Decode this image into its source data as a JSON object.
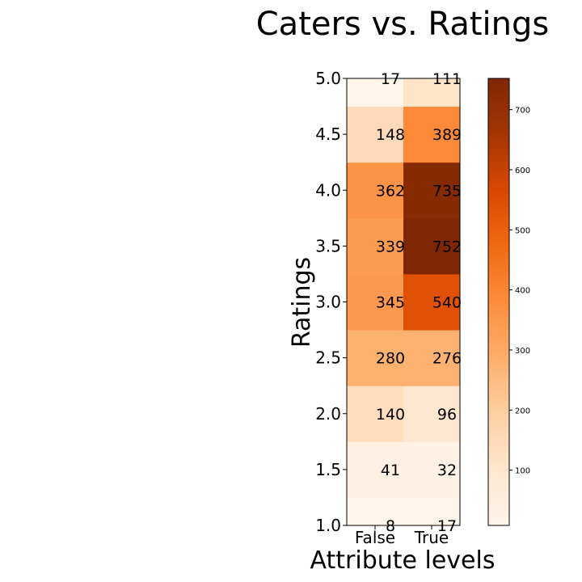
{
  "chart_data": {
    "type": "heatmap",
    "title": "Caters vs. Ratings",
    "xlabel": "Attribute levels",
    "ylabel": "Ratings",
    "x_categories": [
      "False",
      "True"
    ],
    "y_categories": [
      "1.0",
      "1.5",
      "2.0",
      "2.5",
      "3.0",
      "3.5",
      "4.0",
      "4.5",
      "5.0"
    ],
    "values": [
      [
        8,
        17
      ],
      [
        41,
        32
      ],
      [
        140,
        96
      ],
      [
        280,
        276
      ],
      [
        345,
        540
      ],
      [
        339,
        752
      ],
      [
        362,
        735
      ],
      [
        148,
        389
      ],
      [
        17,
        111
      ]
    ],
    "colormap": "Oranges",
    "colorbar": {
      "ticks": [
        "100",
        "200",
        "300",
        "400",
        "500",
        "600",
        "700"
      ],
      "range": [
        8,
        752
      ]
    },
    "colors": {
      "low": "#fff5eb",
      "high": "#7f2704"
    }
  }
}
